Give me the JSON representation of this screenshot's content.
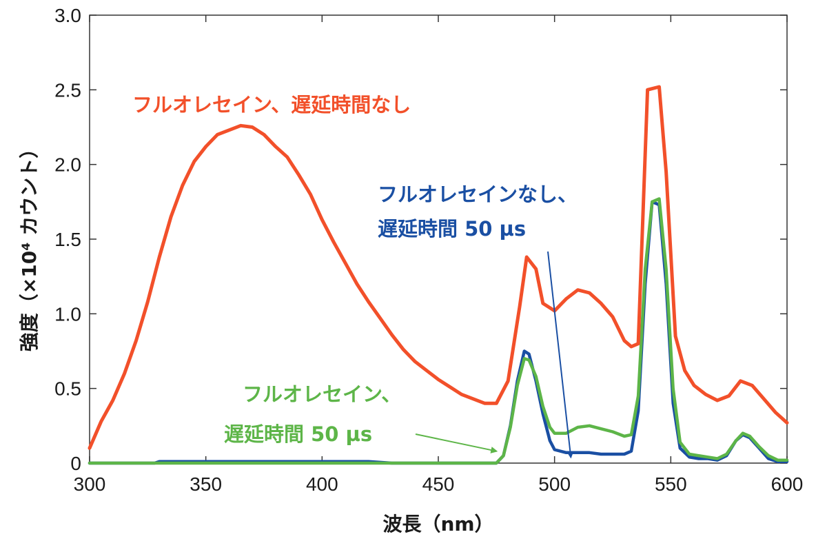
{
  "chart_data": {
    "type": "line",
    "title": "",
    "xlabel": "波長（nm）",
    "ylabel": "強度（×10⁴ カウント）",
    "xlim": [
      300,
      600
    ],
    "ylim": [
      0,
      3.0
    ],
    "x_ticks": [
      300,
      350,
      400,
      450,
      500,
      550,
      600
    ],
    "x_tick_labels": [
      "300",
      "350",
      "400",
      "450",
      "500",
      "550",
      "600"
    ],
    "y_ticks": [
      0,
      0.5,
      1.0,
      1.5,
      2.0,
      2.5,
      3.0
    ],
    "y_tick_labels": [
      "0",
      "0.5",
      "1.0",
      "1.5",
      "2.0",
      "2.5",
      "3.0"
    ],
    "grid": false,
    "series": [
      {
        "name": "フルオレセイン、遅延時間なし",
        "color": "#f2502a",
        "x": [
          300,
          305,
          310,
          315,
          320,
          325,
          330,
          335,
          340,
          345,
          350,
          355,
          360,
          365,
          370,
          375,
          380,
          385,
          390,
          395,
          400,
          405,
          410,
          415,
          420,
          425,
          430,
          435,
          440,
          445,
          450,
          455,
          460,
          465,
          470,
          475,
          480,
          485,
          488,
          492,
          495,
          500,
          505,
          510,
          515,
          520,
          525,
          530,
          533,
          536,
          540,
          545,
          548,
          552,
          556,
          560,
          565,
          570,
          575,
          580,
          585,
          590,
          595,
          600
        ],
        "values": [
          0.1,
          0.28,
          0.42,
          0.6,
          0.82,
          1.08,
          1.38,
          1.65,
          1.86,
          2.02,
          2.12,
          2.2,
          2.23,
          2.26,
          2.25,
          2.2,
          2.12,
          2.05,
          1.93,
          1.8,
          1.63,
          1.48,
          1.34,
          1.2,
          1.08,
          0.97,
          0.86,
          0.76,
          0.68,
          0.62,
          0.56,
          0.51,
          0.46,
          0.43,
          0.4,
          0.4,
          0.55,
          1.05,
          1.38,
          1.3,
          1.07,
          1.02,
          1.1,
          1.16,
          1.14,
          1.07,
          0.98,
          0.82,
          0.78,
          0.8,
          2.5,
          2.52,
          1.95,
          0.85,
          0.62,
          0.52,
          0.46,
          0.42,
          0.45,
          0.55,
          0.52,
          0.43,
          0.34,
          0.27
        ]
      },
      {
        "name": "フルオレセインなし、遅延時間 50 µs",
        "color": "#1a4fa3",
        "x": [
          300,
          328,
          330,
          345,
          360,
          375,
          390,
          400,
          410,
          420,
          430,
          440,
          450,
          460,
          470,
          475,
          478,
          481,
          484,
          487,
          489,
          492,
          495,
          498,
          500,
          505,
          510,
          515,
          520,
          525,
          530,
          533,
          536,
          539,
          542,
          545,
          548,
          551,
          554,
          558,
          562,
          566,
          570,
          574,
          578,
          581,
          584,
          588,
          592,
          596,
          600
        ],
        "values": [
          0,
          0,
          0.01,
          0.01,
          0.01,
          0.01,
          0.01,
          0.01,
          0.01,
          0.01,
          0,
          0,
          0,
          0,
          0,
          0,
          0.05,
          0.25,
          0.55,
          0.75,
          0.73,
          0.55,
          0.33,
          0.15,
          0.09,
          0.07,
          0.07,
          0.07,
          0.06,
          0.06,
          0.06,
          0.08,
          0.35,
          1.2,
          1.75,
          1.73,
          1.2,
          0.4,
          0.1,
          0.04,
          0.03,
          0.03,
          0.02,
          0.05,
          0.15,
          0.19,
          0.17,
          0.1,
          0.03,
          0.01,
          0.01
        ]
      },
      {
        "name": "フルオレセイン、遅延時間 50 µs",
        "color": "#5db548",
        "x": [
          300,
          330,
          345,
          360,
          375,
          390,
          400,
          410,
          420,
          430,
          440,
          450,
          460,
          470,
          475,
          478,
          481,
          484,
          487,
          489,
          492,
          495,
          498,
          500,
          505,
          510,
          515,
          520,
          525,
          530,
          533,
          536,
          539,
          542,
          545,
          548,
          551,
          554,
          558,
          562,
          566,
          570,
          574,
          578,
          581,
          584,
          588,
          592,
          596,
          600
        ],
        "values": [
          0,
          0,
          0,
          0,
          0,
          0,
          0,
          0,
          0,
          0,
          0,
          0,
          0,
          0,
          0,
          0.05,
          0.24,
          0.52,
          0.7,
          0.69,
          0.58,
          0.38,
          0.24,
          0.2,
          0.2,
          0.24,
          0.25,
          0.23,
          0.21,
          0.18,
          0.19,
          0.45,
          1.3,
          1.75,
          1.77,
          1.3,
          0.5,
          0.14,
          0.06,
          0.05,
          0.04,
          0.03,
          0.06,
          0.15,
          0.2,
          0.18,
          0.11,
          0.05,
          0.02,
          0.02
        ]
      }
    ],
    "annotations": [
      {
        "id": "red",
        "lines": [
          "フルオレセイン、遅延時間なし"
        ],
        "color": "#f2502a"
      },
      {
        "id": "blue",
        "lines": [
          "フルオレセインなし、",
          "遅延時間 50 µs"
        ],
        "color": "#1a4fa3"
      },
      {
        "id": "green",
        "lines": [
          "フルオレセイン、",
          "遅延時間 50 µs"
        ],
        "color": "#5db548"
      }
    ],
    "arrows": [
      {
        "from": "blue",
        "color": "#1a4fa3",
        "to_x": 507,
        "to_y": 0.04
      },
      {
        "from": "green",
        "color": "#5db548",
        "to_x": 475,
        "to_y": 0.08
      }
    ]
  }
}
